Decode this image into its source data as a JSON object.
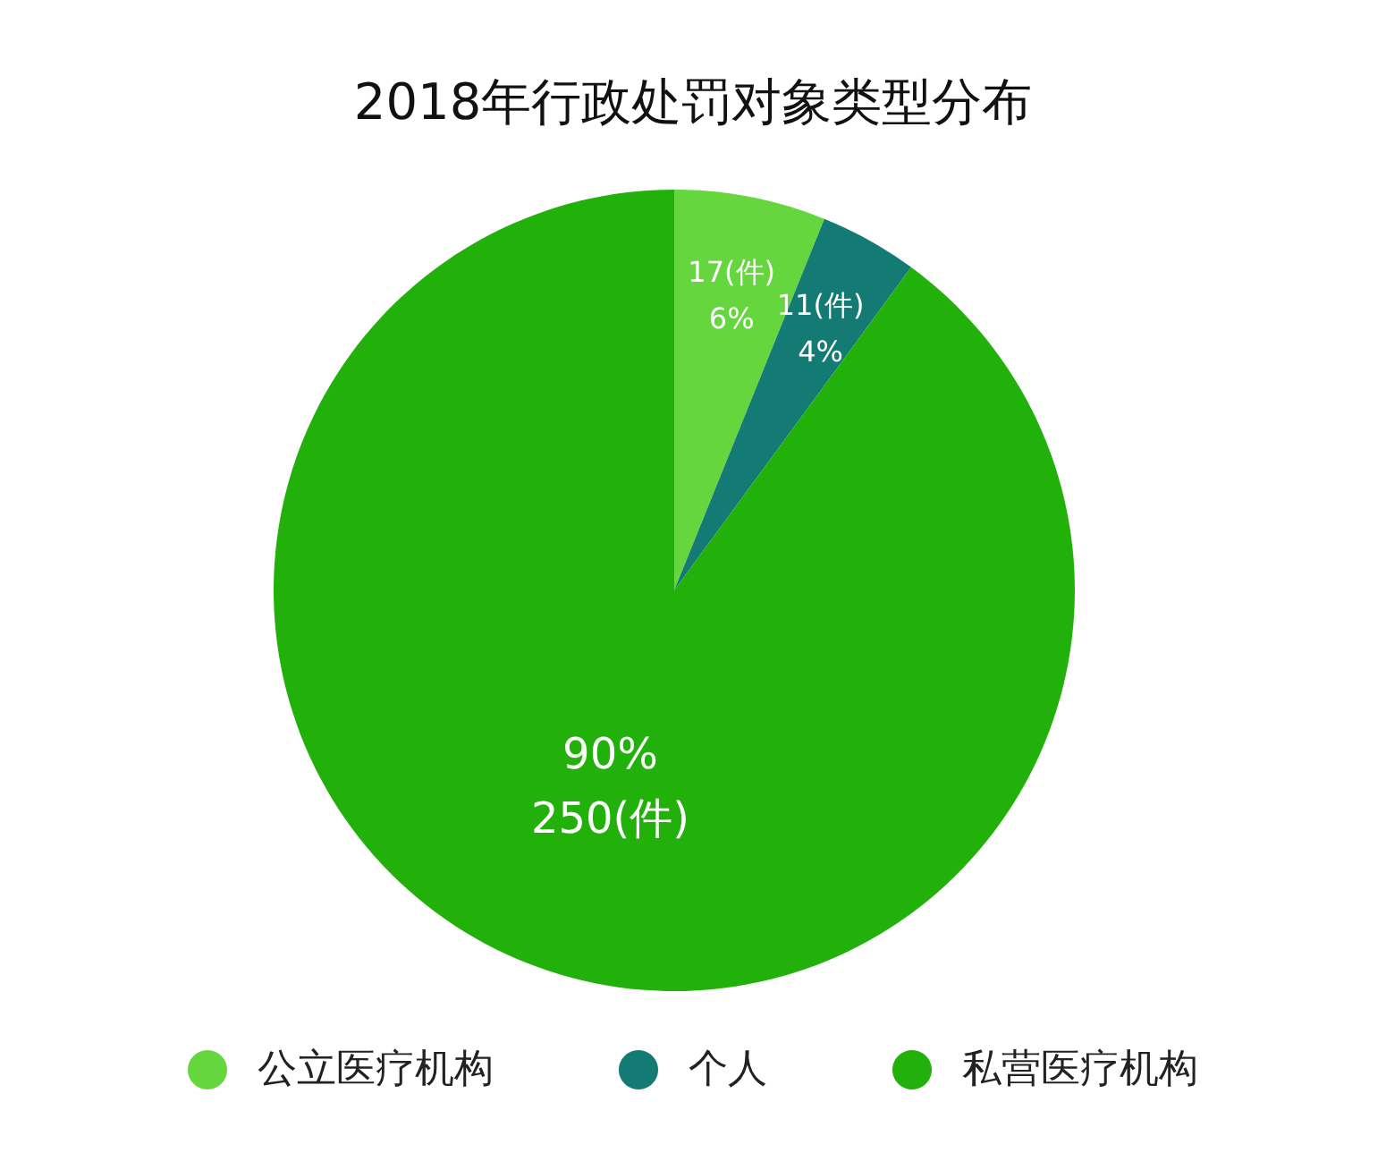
{
  "chart_data": {
    "type": "pie",
    "title": "2018年行政处罚对象类型分布",
    "categories": [
      "公立医疗机构",
      "个人",
      "私营医疗机构"
    ],
    "values": [
      17,
      11,
      250
    ],
    "colors": [
      "#66d63f",
      "#147a74",
      "#22b00a"
    ],
    "value_labels": [
      "17(件)\n6%",
      "11(件)\n4%",
      "90%\n250(件)"
    ],
    "legend": "bottom"
  }
}
